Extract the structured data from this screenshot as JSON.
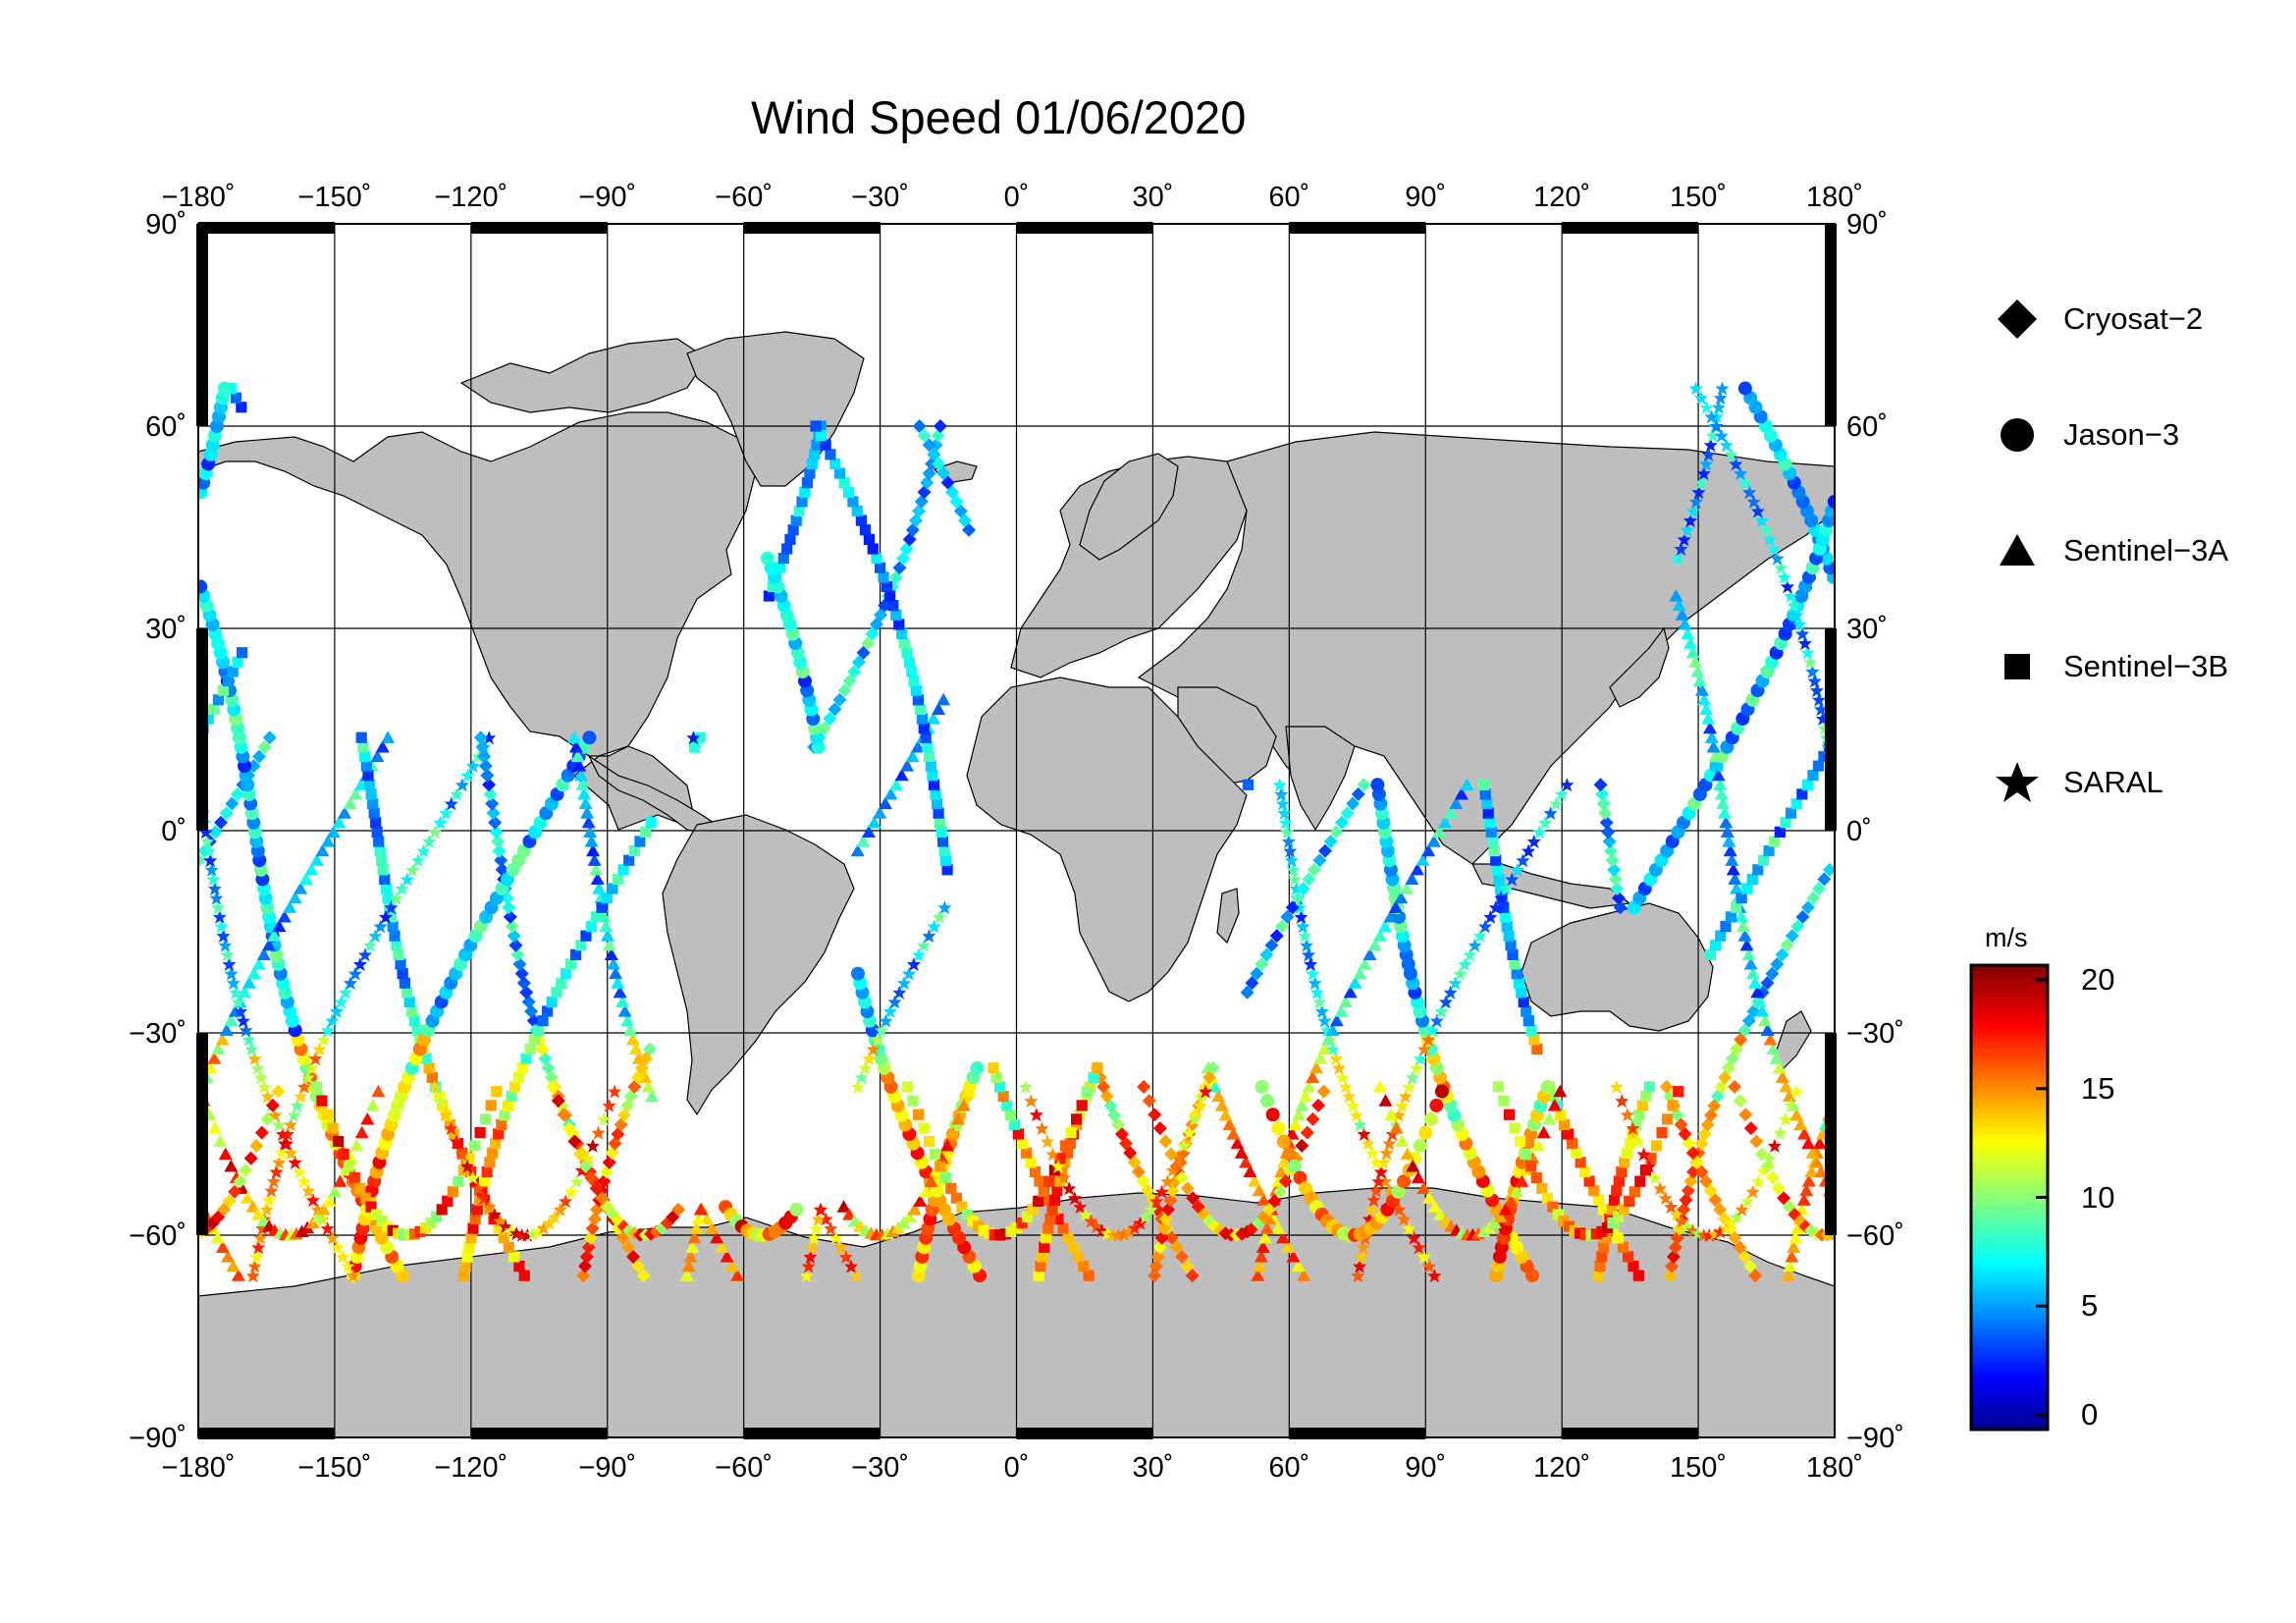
{
  "title": "Wind Speed 01/06/2020",
  "map": {
    "lon_ticks": [
      "−180˚",
      "−150˚",
      "−120˚",
      "−90˚",
      "−60˚",
      "−30˚",
      "0˚",
      "30˚",
      "60˚",
      "90˚",
      "120˚",
      "150˚",
      "180˚"
    ],
    "lat_ticks": [
      "90˚",
      "60˚",
      "30˚",
      "0˚",
      "−30˚",
      "−60˚",
      "−90˚"
    ],
    "lon_range": [
      -180,
      180
    ],
    "lat_range": [
      -90,
      90
    ],
    "land_color": "#bebebe",
    "ocean_color": "#ffffff",
    "graticule": "30 degree"
  },
  "legend": {
    "items": [
      {
        "label": "Cryosat−2",
        "icon": "diamond-icon"
      },
      {
        "label": "Jason−3",
        "icon": "circle-icon"
      },
      {
        "label": "Sentinel−3A",
        "icon": "triangle-icon"
      },
      {
        "label": "Sentinel−3B",
        "icon": "square-icon"
      },
      {
        "label": "SARAL",
        "icon": "star-icon"
      }
    ]
  },
  "colorbar": {
    "unit": "m/s",
    "ticks": [
      "20",
      "15",
      "10",
      "5",
      "0"
    ],
    "range": [
      0,
      20
    ],
    "colormap": "jet"
  },
  "colors": {
    "jet_low": "#00008f",
    "jet_blue": "#0000ff",
    "jet_cyan": "#00ffff",
    "jet_yellow": "#ffff00",
    "jet_red": "#ff0000",
    "jet_high": "#800000"
  }
}
